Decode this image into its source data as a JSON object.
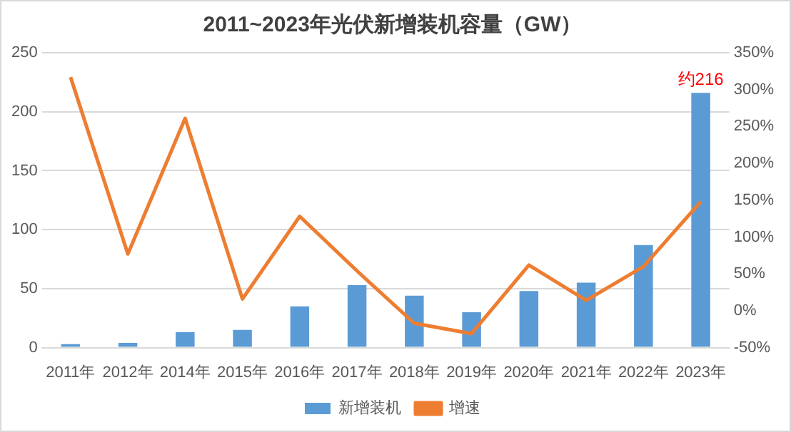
{
  "chart_data": {
    "type": "bar",
    "title": "2011~2023年光伏新增装机容量（GW）",
    "categories": [
      "2011年",
      "2012年",
      "2014年",
      "2015年",
      "2016年",
      "2017年",
      "2018年",
      "2019年",
      "2020年",
      "2021年",
      "2022年",
      "2023年"
    ],
    "series": [
      {
        "name": "新增装机",
        "color": "#5b9bd5",
        "values": [
          3,
          4,
          13,
          15,
          35,
          53,
          44,
          30,
          48,
          55,
          87,
          216
        ]
      },
      {
        "name": "增速",
        "type": "line",
        "axis": "y2",
        "color": "#ed7d31",
        "marker": "none",
        "values": [
          317,
          77,
          261,
          16,
          128,
          54,
          -17,
          -31,
          62,
          14,
          60,
          148
        ]
      }
    ],
    "ylim": [
      0,
      250
    ],
    "yticks": [
      0,
      50,
      100,
      150,
      200,
      250
    ],
    "y2lim": [
      -50,
      350
    ],
    "y2ticks": [
      {
        "value": -50,
        "label": "-50%"
      },
      {
        "value": 0,
        "label": "0%"
      },
      {
        "value": 50,
        "label": "50%"
      },
      {
        "value": 100,
        "label": "100%"
      },
      {
        "value": 150,
        "label": "150%"
      },
      {
        "value": 200,
        "label": "200%"
      },
      {
        "value": 250,
        "label": "250%"
      },
      {
        "value": 300,
        "label": "300%"
      },
      {
        "value": 350,
        "label": "350%"
      }
    ],
    "annotations": [
      {
        "text": "约216",
        "x": "2023年",
        "y": 216
      }
    ],
    "grid": "y",
    "legend": "bottom"
  }
}
